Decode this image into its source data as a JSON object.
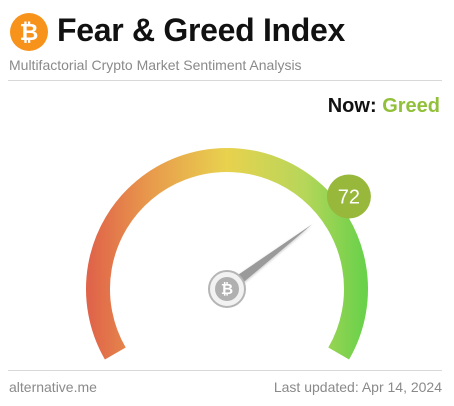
{
  "header": {
    "logo_icon": "bitcoin-icon",
    "logo_glyph": "₿",
    "title": "Fear & Greed Index",
    "subtitle": "Multifactorial Crypto Market Sentiment Analysis"
  },
  "status": {
    "now_label": "Now:",
    "now_value": "Greed"
  },
  "gauge": {
    "value": 72,
    "value_label": "72",
    "min": 0,
    "max": 100,
    "hub_glyph": "₿",
    "colors": {
      "fear": "#e0644a",
      "neutral": "#e8d24e",
      "greed": "#93c03a",
      "extreme_greed": "#6ad14a",
      "badge": "#98b83c",
      "needle": "#9a9a9a"
    }
  },
  "footer": {
    "source": "alternative.me",
    "updated": "Last updated: Apr 14, 2024"
  },
  "colors": {
    "brand": "#f7931a",
    "text_primary": "#111111",
    "text_muted": "#8a8a8a",
    "rule": "#d8d8d8"
  }
}
